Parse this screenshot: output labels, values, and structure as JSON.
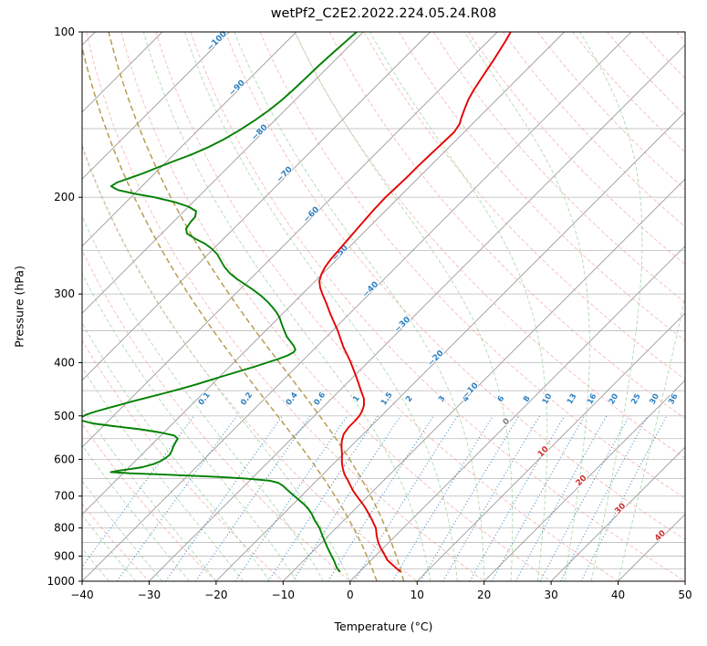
{
  "title": "wetPf2_C2E2.2022.224.05.24.R08",
  "chart_data": {
    "type": "line",
    "diagram": "skew-t-log-p",
    "title": "wetPf2_C2E2.2022.224.05.24.R08",
    "xlabel": "Temperature (°C)",
    "ylabel": "Pressure (hPa)",
    "xlim": [
      -40,
      50
    ],
    "pressure_range_hpa": [
      100,
      1000
    ],
    "x_tick_values": [
      -40,
      -30,
      -20,
      -10,
      0,
      10,
      20,
      30,
      40,
      50
    ],
    "x_tick_labels": [
      "−40",
      "−30",
      "−20",
      "−10",
      "0",
      "10",
      "20",
      "30",
      "40",
      "50"
    ],
    "y_tick_values": [
      100,
      200,
      300,
      400,
      500,
      600,
      700,
      800,
      900,
      1000
    ],
    "isobar_grid_step_hpa": 50,
    "isotherms": {
      "min": -130,
      "max": 50,
      "step": 10
    },
    "isotherm_label_values": [
      -100,
      -90,
      -80,
      -70,
      -60,
      -50,
      -40,
      -30,
      -20,
      -10,
      0,
      10,
      20,
      30,
      40
    ],
    "dry_adiabats": {
      "min": -40,
      "max": 190,
      "step": 10
    },
    "moist_adiabats": {
      "min": -40,
      "max": 40,
      "step": 4,
      "highlight": [
        4,
        8
      ]
    },
    "mixing_ratio_g_kg": [
      "0.1",
      "0.2",
      "0.4",
      "0.6",
      "1",
      "1.5",
      "2",
      "3",
      "4",
      "6",
      "8",
      "10",
      "13",
      "16",
      "20",
      "25",
      "30",
      "36"
    ],
    "series": [
      {
        "name": "temperature",
        "units": {
          "pressure": "hPa",
          "value": "°C"
        },
        "points": [
          [
            960,
            6
          ],
          [
            945,
            4.8
          ],
          [
            930,
            3.6
          ],
          [
            915,
            2.4
          ],
          [
            900,
            1.5
          ],
          [
            885,
            0.6
          ],
          [
            870,
            -0.4
          ],
          [
            855,
            -1.3
          ],
          [
            840,
            -2.1
          ],
          [
            825,
            -2.9
          ],
          [
            810,
            -3.6
          ],
          [
            800,
            -4.1
          ],
          [
            785,
            -5.1
          ],
          [
            770,
            -6.1
          ],
          [
            755,
            -7.2
          ],
          [
            740,
            -8.3
          ],
          [
            725,
            -9.5
          ],
          [
            710,
            -10.8
          ],
          [
            700,
            -11.7
          ],
          [
            685,
            -13
          ],
          [
            670,
            -14.2
          ],
          [
            655,
            -15.4
          ],
          [
            640,
            -16.7
          ],
          [
            625,
            -17.8
          ],
          [
            610,
            -18.8
          ],
          [
            600,
            -19.4
          ],
          [
            585,
            -20.3
          ],
          [
            570,
            -21.3
          ],
          [
            555,
            -22.2
          ],
          [
            540,
            -22.9
          ],
          [
            525,
            -23.2
          ],
          [
            510,
            -23.2
          ],
          [
            500,
            -23.3
          ],
          [
            490,
            -23.6
          ],
          [
            478,
            -24.2
          ],
          [
            465,
            -25.2
          ],
          [
            450,
            -26.8
          ],
          [
            435,
            -28.4
          ],
          [
            420,
            -30.1
          ],
          [
            405,
            -31.9
          ],
          [
            400,
            -32.5
          ],
          [
            388,
            -34.1
          ],
          [
            375,
            -35.9
          ],
          [
            362,
            -37.6
          ],
          [
            350,
            -39.2
          ],
          [
            338,
            -41
          ],
          [
            325,
            -43
          ],
          [
            312,
            -45
          ],
          [
            300,
            -47
          ],
          [
            292,
            -48.3
          ],
          [
            284,
            -49.4
          ],
          [
            276,
            -50.1
          ],
          [
            268,
            -50.6
          ],
          [
            260,
            -50.9
          ],
          [
            250,
            -51.1
          ],
          [
            240,
            -51.3
          ],
          [
            230,
            -51.5
          ],
          [
            220,
            -51.7
          ],
          [
            210,
            -51.9
          ],
          [
            200,
            -52
          ],
          [
            192,
            -51.9
          ],
          [
            184,
            -51.8
          ],
          [
            176,
            -51.8
          ],
          [
            168,
            -51.7
          ],
          [
            160,
            -51.6
          ],
          [
            152,
            -51.5
          ],
          [
            147,
            -51.9
          ],
          [
            143,
            -52.6
          ],
          [
            138,
            -53.4
          ],
          [
            133,
            -54.2
          ],
          [
            128,
            -54.8
          ],
          [
            123,
            -55.3
          ],
          [
            118,
            -55.8
          ],
          [
            113,
            -56.3
          ],
          [
            108,
            -56.9
          ],
          [
            104,
            -57.4
          ],
          [
            100,
            -58
          ]
        ]
      },
      {
        "name": "dewpoint",
        "units": {
          "pressure": "hPa",
          "value": "°C"
        },
        "points": [
          [
            960,
            -3
          ],
          [
            945,
            -4
          ],
          [
            930,
            -4.8
          ],
          [
            915,
            -5.6
          ],
          [
            900,
            -6.5
          ],
          [
            885,
            -7.4
          ],
          [
            870,
            -8.3
          ],
          [
            855,
            -9.2
          ],
          [
            840,
            -10.1
          ],
          [
            825,
            -11
          ],
          [
            810,
            -11.9
          ],
          [
            800,
            -12.5
          ],
          [
            785,
            -13.6
          ],
          [
            770,
            -14.7
          ],
          [
            755,
            -15.7
          ],
          [
            740,
            -16.9
          ],
          [
            725,
            -18.3
          ],
          [
            710,
            -19.9
          ],
          [
            700,
            -21
          ],
          [
            690,
            -22.1
          ],
          [
            680,
            -23.2
          ],
          [
            670,
            -24.3
          ],
          [
            662,
            -25.4
          ],
          [
            656,
            -27
          ],
          [
            650,
            -31
          ],
          [
            645,
            -36
          ],
          [
            640,
            -43
          ],
          [
            636,
            -49
          ],
          [
            633,
            -52
          ],
          [
            629,
            -51
          ],
          [
            625,
            -49.5
          ],
          [
            620,
            -48
          ],
          [
            612,
            -46.8
          ],
          [
            604,
            -46.2
          ],
          [
            596,
            -45.9
          ],
          [
            588,
            -45.8
          ],
          [
            578,
            -46.1
          ],
          [
            568,
            -46.5
          ],
          [
            558,
            -46.8
          ],
          [
            550,
            -47
          ],
          [
            543,
            -48
          ],
          [
            536,
            -50.5
          ],
          [
            529,
            -54
          ],
          [
            522,
            -58.5
          ],
          [
            516,
            -62
          ],
          [
            510,
            -64
          ],
          [
            504,
            -64.6
          ],
          [
            498,
            -64.3
          ],
          [
            491,
            -63.3
          ],
          [
            484,
            -62
          ],
          [
            477,
            -60.6
          ],
          [
            470,
            -59.2
          ],
          [
            462,
            -57.4
          ],
          [
            454,
            -55.6
          ],
          [
            446,
            -53.9
          ],
          [
            438,
            -52.3
          ],
          [
            430,
            -50.8
          ],
          [
            422,
            -49.3
          ],
          [
            414,
            -47.7
          ],
          [
            407,
            -46.3
          ],
          [
            400,
            -45
          ],
          [
            394,
            -43.9
          ],
          [
            388,
            -43
          ],
          [
            383,
            -42.6
          ],
          [
            379,
            -42.7
          ],
          [
            373,
            -43.5
          ],
          [
            366,
            -44.7
          ],
          [
            359,
            -45.9
          ],
          [
            352,
            -46.9
          ],
          [
            345,
            -47.9
          ],
          [
            338,
            -48.9
          ],
          [
            331,
            -49.9
          ],
          [
            324,
            -51.1
          ],
          [
            317,
            -52.5
          ],
          [
            310,
            -54
          ],
          [
            303,
            -55.7
          ],
          [
            296,
            -57.6
          ],
          [
            289,
            -59.7
          ],
          [
            282,
            -61.9
          ],
          [
            275,
            -63.9
          ],
          [
            268,
            -65.6
          ],
          [
            261,
            -67.1
          ],
          [
            254,
            -68.6
          ],
          [
            248,
            -70.3
          ],
          [
            243,
            -72
          ],
          [
            238,
            -74.2
          ],
          [
            233,
            -76.2
          ],
          [
            228,
            -77.1
          ],
          [
            222,
            -77.4
          ],
          [
            217,
            -77.5
          ],
          [
            212,
            -78.2
          ],
          [
            208,
            -80
          ],
          [
            204,
            -82.8
          ],
          [
            200,
            -86.5
          ],
          [
            197,
            -90
          ],
          [
            194,
            -93
          ],
          [
            191,
            -94.6
          ],
          [
            188,
            -94.3
          ],
          [
            185,
            -93.2
          ],
          [
            181,
            -91.8
          ],
          [
            177,
            -90.6
          ],
          [
            172,
            -89
          ],
          [
            167,
            -87.3
          ],
          [
            162,
            -85.9
          ],
          [
            157,
            -84.8
          ],
          [
            151,
            -83.8
          ],
          [
            145,
            -83
          ],
          [
            139,
            -82.4
          ],
          [
            133,
            -82
          ],
          [
            127,
            -81.8
          ],
          [
            121,
            -81.7
          ],
          [
            115,
            -81.6
          ],
          [
            109,
            -81.4
          ],
          [
            104,
            -81.2
          ],
          [
            100,
            -81
          ]
        ]
      }
    ],
    "colors": {
      "temperature": "#e60000",
      "dewpoint": "#008000",
      "grid": "#c4c4c4",
      "isotherm": "#9b9b9b",
      "dry_adiabat": "#f1a09a",
      "moist_adiabat": "#98cf98",
      "moist_highlight": "#b79d52",
      "mixing_ratio": "#2d7fbf",
      "label_neg": "#2d7fbf",
      "label_zero": "#7f7f7f",
      "label_pos": "#cf2f2f",
      "axis": "#000000"
    }
  }
}
